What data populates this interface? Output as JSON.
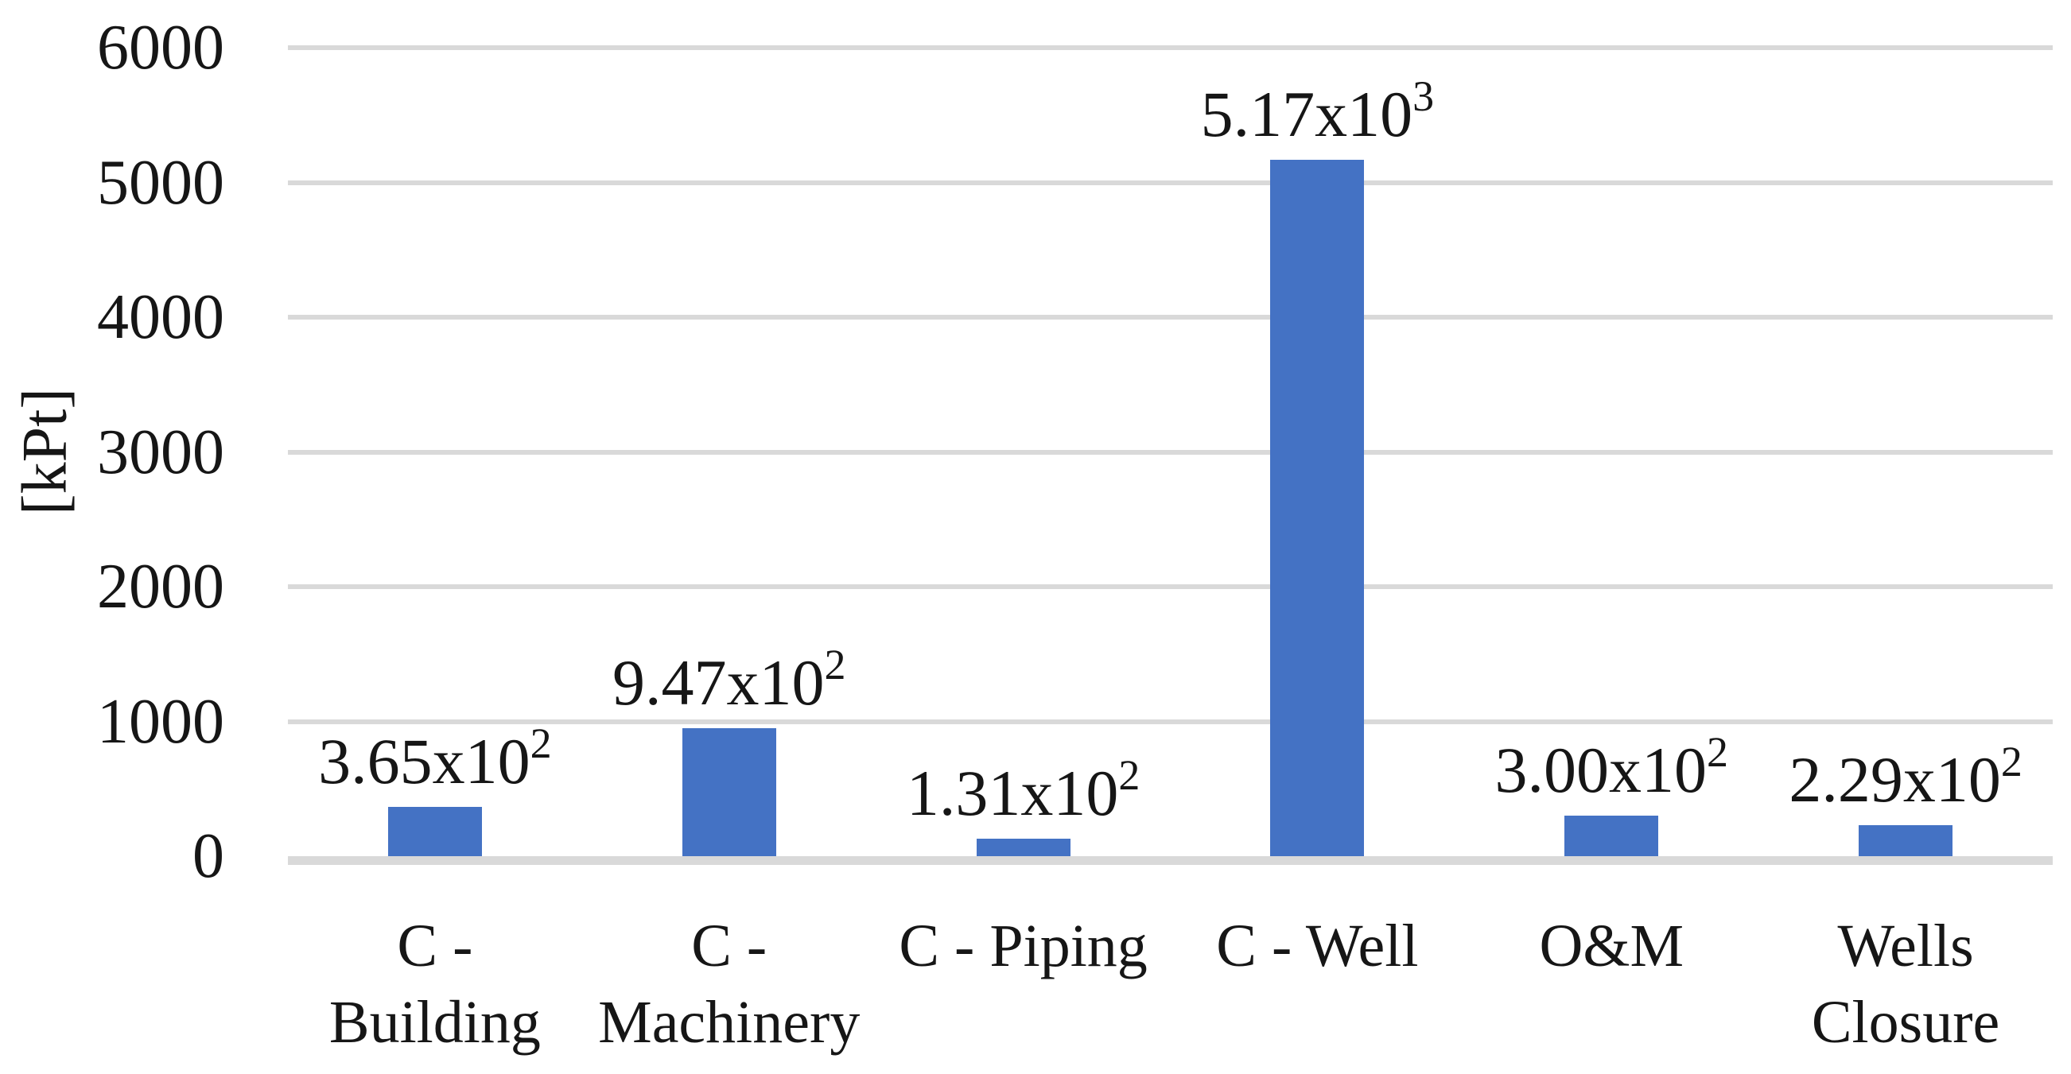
{
  "chart_data": {
    "type": "bar",
    "title": "",
    "xlabel": "",
    "ylabel": "[kPt]",
    "ylim": [
      0,
      6000
    ],
    "ytick_interval": 1000,
    "yticks": [
      0,
      1000,
      2000,
      3000,
      4000,
      5000,
      6000
    ],
    "grid": "horizontal",
    "legend": "none",
    "bar_color": "#4472C4",
    "gridline_color": "#D9D9D9",
    "text_color": "#161616",
    "categories": [
      "C - Building",
      "C - Machinery",
      "C - Piping",
      "C - Well",
      "O&M",
      "Wells Closure"
    ],
    "category_label_lines": [
      [
        "C -",
        "Building"
      ],
      [
        "C -",
        "Machinery"
      ],
      [
        "C - Piping"
      ],
      [
        "C - Well"
      ],
      [
        "O&M"
      ],
      [
        "Wells",
        "Closure"
      ]
    ],
    "values": [
      365,
      947,
      131,
      5170,
      300,
      229
    ],
    "data_labels": [
      {
        "base": "3.65x10",
        "exp": "2"
      },
      {
        "base": "9.47x10",
        "exp": "2"
      },
      {
        "base": "1.31x10",
        "exp": "2"
      },
      {
        "base": "5.17x10",
        "exp": "3"
      },
      {
        "base": "3.00x10",
        "exp": "2"
      },
      {
        "base": "2.29x10",
        "exp": "2"
      }
    ]
  }
}
